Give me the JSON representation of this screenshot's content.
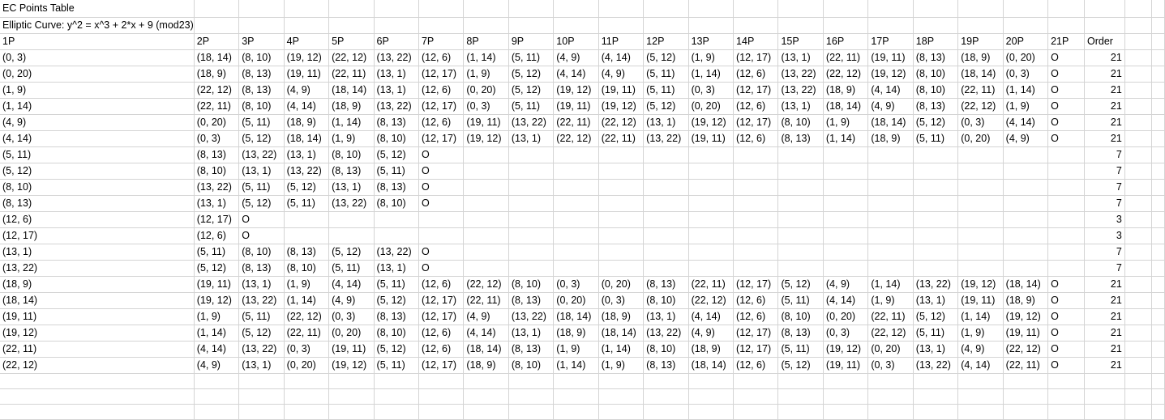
{
  "sheet": {
    "title": "EC Points Table",
    "curve": "Elliptic Curve: y^2 = x^3 + 2*x + 9 (mod23)",
    "headers": [
      "1P",
      "2P",
      "3P",
      "4P",
      "5P",
      "6P",
      "7P",
      "8P",
      "9P",
      "10P",
      "11P",
      "12P",
      "13P",
      "14P",
      "15P",
      "16P",
      "17P",
      "18P",
      "19P",
      "20P",
      "21P",
      "Order"
    ],
    "rows": [
      [
        "(0, 3)",
        "(18, 14)",
        "(8, 10)",
        "(19, 12)",
        "(22, 12)",
        "(13, 22)",
        "(12, 6)",
        "(1, 14)",
        "(5, 11)",
        "(4, 9)",
        "(4, 14)",
        "(5, 12)",
        "(1, 9)",
        "(12, 17)",
        "(13, 1)",
        "(22, 11)",
        "(19, 11)",
        "(8, 13)",
        "(18, 9)",
        "(0, 20)",
        "O",
        "21"
      ],
      [
        "(0, 20)",
        "(18, 9)",
        "(8, 13)",
        "(19, 11)",
        "(22, 11)",
        "(13, 1)",
        "(12, 17)",
        "(1, 9)",
        "(5, 12)",
        "(4, 14)",
        "(4, 9)",
        "(5, 11)",
        "(1, 14)",
        "(12, 6)",
        "(13, 22)",
        "(22, 12)",
        "(19, 12)",
        "(8, 10)",
        "(18, 14)",
        "(0, 3)",
        "O",
        "21"
      ],
      [
        "(1, 9)",
        "(22, 12)",
        "(8, 13)",
        "(4, 9)",
        "(18, 14)",
        "(13, 1)",
        "(12, 6)",
        "(0, 20)",
        "(5, 12)",
        "(19, 12)",
        "(19, 11)",
        "(5, 11)",
        "(0, 3)",
        "(12, 17)",
        "(13, 22)",
        "(18, 9)",
        "(4, 14)",
        "(8, 10)",
        "(22, 11)",
        "(1, 14)",
        "O",
        "21"
      ],
      [
        "(1, 14)",
        "(22, 11)",
        "(8, 10)",
        "(4, 14)",
        "(18, 9)",
        "(13, 22)",
        "(12, 17)",
        "(0, 3)",
        "(5, 11)",
        "(19, 11)",
        "(19, 12)",
        "(5, 12)",
        "(0, 20)",
        "(12, 6)",
        "(13, 1)",
        "(18, 14)",
        "(4, 9)",
        "(8, 13)",
        "(22, 12)",
        "(1, 9)",
        "O",
        "21"
      ],
      [
        "(4, 9)",
        "(0, 20)",
        "(5, 11)",
        "(18, 9)",
        "(1, 14)",
        "(8, 13)",
        "(12, 6)",
        "(19, 11)",
        "(13, 22)",
        "(22, 11)",
        "(22, 12)",
        "(13, 1)",
        "(19, 12)",
        "(12, 17)",
        "(8, 10)",
        "(1, 9)",
        "(18, 14)",
        "(5, 12)",
        "(0, 3)",
        "(4, 14)",
        "O",
        "21"
      ],
      [
        "(4, 14)",
        "(0, 3)",
        "(5, 12)",
        "(18, 14)",
        "(1, 9)",
        "(8, 10)",
        "(12, 17)",
        "(19, 12)",
        "(13, 1)",
        "(22, 12)",
        "(22, 11)",
        "(13, 22)",
        "(19, 11)",
        "(12, 6)",
        "(8, 13)",
        "(1, 14)",
        "(18, 9)",
        "(5, 11)",
        "(0, 20)",
        "(4, 9)",
        "O",
        "21"
      ],
      [
        "(5, 11)",
        "(8, 13)",
        "(13, 22)",
        "(13, 1)",
        "(8, 10)",
        "(5, 12)",
        "O",
        "",
        "",
        "",
        "",
        "",
        "",
        "",
        "",
        "",
        "",
        "",
        "",
        "",
        "",
        "7"
      ],
      [
        "(5, 12)",
        "(8, 10)",
        "(13, 1)",
        "(13, 22)",
        "(8, 13)",
        "(5, 11)",
        "O",
        "",
        "",
        "",
        "",
        "",
        "",
        "",
        "",
        "",
        "",
        "",
        "",
        "",
        "",
        "7"
      ],
      [
        "(8, 10)",
        "(13, 22)",
        "(5, 11)",
        "(5, 12)",
        "(13, 1)",
        "(8, 13)",
        "O",
        "",
        "",
        "",
        "",
        "",
        "",
        "",
        "",
        "",
        "",
        "",
        "",
        "",
        "",
        "7"
      ],
      [
        "(8, 13)",
        "(13, 1)",
        "(5, 12)",
        "(5, 11)",
        "(13, 22)",
        "(8, 10)",
        "O",
        "",
        "",
        "",
        "",
        "",
        "",
        "",
        "",
        "",
        "",
        "",
        "",
        "",
        "",
        "7"
      ],
      [
        "(12, 6)",
        "(12, 17)",
        "O",
        "",
        "",
        "",
        "",
        "",
        "",
        "",
        "",
        "",
        "",
        "",
        "",
        "",
        "",
        "",
        "",
        "",
        "",
        "3"
      ],
      [
        "(12, 17)",
        "(12, 6)",
        "O",
        "",
        "",
        "",
        "",
        "",
        "",
        "",
        "",
        "",
        "",
        "",
        "",
        "",
        "",
        "",
        "",
        "",
        "",
        "3"
      ],
      [
        "(13, 1)",
        "(5, 11)",
        "(8, 10)",
        "(8, 13)",
        "(5, 12)",
        "(13, 22)",
        "O",
        "",
        "",
        "",
        "",
        "",
        "",
        "",
        "",
        "",
        "",
        "",
        "",
        "",
        "",
        "7"
      ],
      [
        "(13, 22)",
        "(5, 12)",
        "(8, 13)",
        "(8, 10)",
        "(5, 11)",
        "(13, 1)",
        "O",
        "",
        "",
        "",
        "",
        "",
        "",
        "",
        "",
        "",
        "",
        "",
        "",
        "",
        "",
        "7"
      ],
      [
        "(18, 9)",
        "(19, 11)",
        "(13, 1)",
        "(1, 9)",
        "(4, 14)",
        "(5, 11)",
        "(12, 6)",
        "(22, 12)",
        "(8, 10)",
        "(0, 3)",
        "(0, 20)",
        "(8, 13)",
        "(22, 11)",
        "(12, 17)",
        "(5, 12)",
        "(4, 9)",
        "(1, 14)",
        "(13, 22)",
        "(19, 12)",
        "(18, 14)",
        "O",
        "21"
      ],
      [
        "(18, 14)",
        "(19, 12)",
        "(13, 22)",
        "(1, 14)",
        "(4, 9)",
        "(5, 12)",
        "(12, 17)",
        "(22, 11)",
        "(8, 13)",
        "(0, 20)",
        "(0, 3)",
        "(8, 10)",
        "(22, 12)",
        "(12, 6)",
        "(5, 11)",
        "(4, 14)",
        "(1, 9)",
        "(13, 1)",
        "(19, 11)",
        "(18, 9)",
        "O",
        "21"
      ],
      [
        "(19, 11)",
        "(1, 9)",
        "(5, 11)",
        "(22, 12)",
        "(0, 3)",
        "(8, 13)",
        "(12, 17)",
        "(4, 9)",
        "(13, 22)",
        "(18, 14)",
        "(18, 9)",
        "(13, 1)",
        "(4, 14)",
        "(12, 6)",
        "(8, 10)",
        "(0, 20)",
        "(22, 11)",
        "(5, 12)",
        "(1, 14)",
        "(19, 12)",
        "O",
        "21"
      ],
      [
        "(19, 12)",
        "(1, 14)",
        "(5, 12)",
        "(22, 11)",
        "(0, 20)",
        "(8, 10)",
        "(12, 6)",
        "(4, 14)",
        "(13, 1)",
        "(18, 9)",
        "(18, 14)",
        "(13, 22)",
        "(4, 9)",
        "(12, 17)",
        "(8, 13)",
        "(0, 3)",
        "(22, 12)",
        "(5, 11)",
        "(1, 9)",
        "(19, 11)",
        "O",
        "21"
      ],
      [
        "(22, 11)",
        "(4, 14)",
        "(13, 22)",
        "(0, 3)",
        "(19, 11)",
        "(5, 12)",
        "(12, 6)",
        "(18, 14)",
        "(8, 13)",
        "(1, 9)",
        "(1, 14)",
        "(8, 10)",
        "(18, 9)",
        "(12, 17)",
        "(5, 11)",
        "(19, 12)",
        "(0, 20)",
        "(13, 1)",
        "(4, 9)",
        "(22, 12)",
        "O",
        "21"
      ],
      [
        "(22, 12)",
        "(4, 9)",
        "(13, 1)",
        "(0, 20)",
        "(19, 12)",
        "(5, 11)",
        "(12, 17)",
        "(18, 9)",
        "(8, 10)",
        "(1, 14)",
        "(1, 9)",
        "(8, 13)",
        "(18, 14)",
        "(12, 6)",
        "(5, 12)",
        "(19, 11)",
        "(0, 3)",
        "(13, 22)",
        "(4, 14)",
        "(22, 11)",
        "O",
        "21"
      ]
    ]
  }
}
